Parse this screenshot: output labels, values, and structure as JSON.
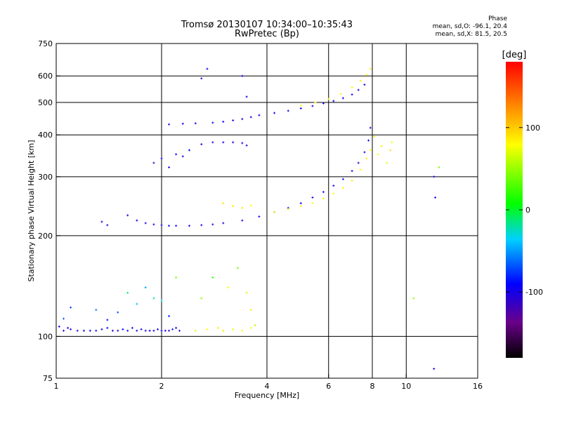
{
  "chart_data": {
    "type": "scatter",
    "title": "Tromsø 20130107 10:34:00–10:35:43",
    "subtitle": "RwPretec (Bp)",
    "xlabel": "Frequency [MHz]",
    "ylabel": "Stationary phase Virtual Height [km]",
    "x_scale": "log",
    "y_scale": "log",
    "xlim": [
      1,
      16
    ],
    "ylim": [
      75,
      750
    ],
    "x_ticks": [
      1,
      2,
      4,
      6,
      8,
      10,
      16
    ],
    "x_tick_labels": [
      "1",
      "2",
      "4",
      "6",
      "8",
      "10",
      "16"
    ],
    "x_grid": [
      2,
      4,
      6,
      8,
      10
    ],
    "y_ticks": [
      75,
      100,
      200,
      300,
      400,
      500,
      600,
      750
    ],
    "y_tick_labels": [
      "75",
      "100",
      "200",
      "300",
      "400",
      "500",
      "600",
      "750"
    ],
    "y_grid": [
      100,
      200,
      300,
      400,
      500,
      600
    ],
    "grid": true,
    "color_variable": "phase",
    "colorbar": {
      "label": "[deg]",
      "range": [
        -180,
        180
      ],
      "ticks": [
        100,
        0,
        -100
      ],
      "tick_labels": [
        "100",
        "0",
        "-100"
      ]
    },
    "phase_stats": {
      "heading": "Phase",
      "line1": "mean, sd,O: -96.1, 20.4",
      "line2": "mean, sd,X:  81.5, 20.5"
    },
    "series": [
      {
        "trace": "E and low-frequency echoes (scattered)",
        "x": [
          1.02,
          1.05,
          1.08,
          1.1,
          1.15,
          1.2,
          1.25,
          1.3,
          1.35,
          1.4,
          1.45,
          1.5,
          1.55,
          1.6,
          1.65,
          1.7,
          1.75,
          1.8,
          1.85,
          1.9,
          1.95,
          2.0,
          2.05,
          2.1,
          2.15,
          2.2,
          2.25,
          1.3,
          1.5,
          1.7,
          1.9,
          2.1,
          1.6,
          1.8,
          2.0,
          2.2,
          1.4,
          1.05,
          1.1
        ],
        "y": [
          107,
          104,
          106,
          105,
          104,
          104,
          104,
          104,
          105,
          106,
          104,
          104,
          105,
          104,
          106,
          104,
          105,
          104,
          104,
          104,
          105,
          104,
          104,
          104,
          105,
          106,
          104,
          120,
          118,
          125,
          130,
          115,
          135,
          140,
          128,
          150,
          112,
          113,
          122
        ],
        "phase": [
          -95,
          -100,
          -92,
          -105,
          -110,
          -98,
          -90,
          -102,
          -96,
          -94,
          -108,
          -112,
          -91,
          -88,
          -100,
          -97,
          -104,
          -106,
          -90,
          -95,
          -99,
          -93,
          -101,
          -107,
          -85,
          -94,
          -100,
          -60,
          -70,
          -40,
          -20,
          -80,
          -10,
          -50,
          -30,
          40,
          -85,
          -65,
          -75
        ]
      },
      {
        "trace": "E-region X-mode echoes",
        "x": [
          2.5,
          2.7,
          2.9,
          3.0,
          3.2,
          3.4,
          3.6,
          3.7,
          2.6,
          3.1,
          3.5,
          2.8,
          3.3,
          3.6
        ],
        "y": [
          104,
          105,
          106,
          104,
          105,
          104,
          106,
          108,
          130,
          140,
          135,
          150,
          160,
          120
        ],
        "phase": [
          70,
          80,
          85,
          90,
          75,
          82,
          78,
          60,
          50,
          80,
          70,
          20,
          40,
          85
        ]
      },
      {
        "trace": "F1/F2 O-mode trace",
        "x": [
          1.6,
          1.7,
          1.8,
          1.9,
          2.0,
          2.1,
          2.2,
          2.4,
          2.6,
          2.8,
          3.0,
          3.4,
          3.8,
          4.2,
          4.6,
          5.0,
          5.4,
          5.8,
          6.2,
          6.6,
          7.0,
          7.3,
          7.6,
          7.8,
          7.9
        ],
        "y": [
          230,
          222,
          218,
          216,
          215,
          214,
          214,
          214,
          215,
          216,
          218,
          222,
          228,
          235,
          242,
          250,
          260,
          270,
          282,
          295,
          312,
          330,
          355,
          385,
          420
        ],
        "phase": [
          -100,
          -98,
          -102,
          -96,
          -94,
          -99,
          -101,
          -97,
          -95,
          -100,
          -103,
          -98,
          -96,
          -94,
          -100,
          -97,
          -95,
          -99,
          -102,
          -96,
          -98,
          -100,
          -94,
          -97,
          -101
        ]
      },
      {
        "trace": "F1/F2 X-mode trace",
        "x": [
          4.2,
          4.6,
          5.0,
          5.4,
          5.8,
          6.2,
          6.6,
          7.0,
          7.4,
          7.7,
          7.9,
          8.1,
          3.0,
          3.2,
          3.4,
          3.6
        ],
        "y": [
          235,
          240,
          245,
          250,
          258,
          267,
          278,
          292,
          315,
          340,
          360,
          395,
          250,
          245,
          242,
          246
        ],
        "phase": [
          82,
          78,
          85,
          80,
          84,
          79,
          83,
          88,
          81,
          86,
          77,
          82,
          90,
          85,
          88,
          80
        ]
      },
      {
        "trace": "Multi-hop O-mode trace",
        "x": [
          2.1,
          2.3,
          2.5,
          2.8,
          3.0,
          3.2,
          3.4,
          3.6,
          3.8,
          4.2,
          4.6,
          5.0,
          5.4,
          5.8,
          6.2,
          6.6,
          7.0,
          7.3,
          7.6
        ],
        "y": [
          430,
          432,
          433,
          435,
          438,
          442,
          446,
          452,
          458,
          465,
          472,
          480,
          488,
          497,
          505,
          515,
          528,
          545,
          565
        ],
        "phase": [
          -100,
          -96,
          -102,
          -98,
          -94,
          -99,
          -101,
          -97,
          -95,
          -100,
          -103,
          -98,
          -96,
          -94,
          -100,
          -97,
          -95,
          -99,
          -102
        ]
      },
      {
        "trace": "Multi-hop X-mode trace",
        "x": [
          5.0,
          5.5,
          6.0,
          6.5,
          7.0,
          7.4,
          7.7,
          7.9
        ],
        "y": [
          490,
          500,
          512,
          530,
          555,
          580,
          605,
          630
        ],
        "phase": [
          80,
          84,
          78,
          86,
          82,
          88,
          79,
          85
        ]
      },
      {
        "trace": "Isolated echoes",
        "x": [
          1.35,
          1.4,
          1.9,
          2.0,
          2.1,
          2.2,
          2.3,
          2.4,
          2.6,
          2.8,
          3.0,
          3.2,
          3.4,
          3.5,
          2.7,
          2.6,
          3.4,
          3.5,
          12.0,
          12.1,
          12.4,
          8.3,
          8.5,
          8.8,
          9.0,
          9.1,
          12.0,
          10.5
        ],
        "y": [
          220,
          215,
          330,
          340,
          320,
          350,
          345,
          360,
          375,
          380,
          380,
          380,
          378,
          372,
          630,
          590,
          600,
          520,
          300,
          260,
          320,
          350,
          370,
          330,
          360,
          380,
          80,
          130
        ],
        "phase": [
          -100,
          -105,
          -110,
          -95,
          -100,
          -98,
          -104,
          -92,
          -96,
          -99,
          -101,
          -97,
          -95,
          -103,
          -90,
          -100,
          -98,
          -94,
          -100,
          -95,
          40,
          80,
          85,
          70,
          90,
          75,
          -100,
          50
        ]
      }
    ]
  }
}
